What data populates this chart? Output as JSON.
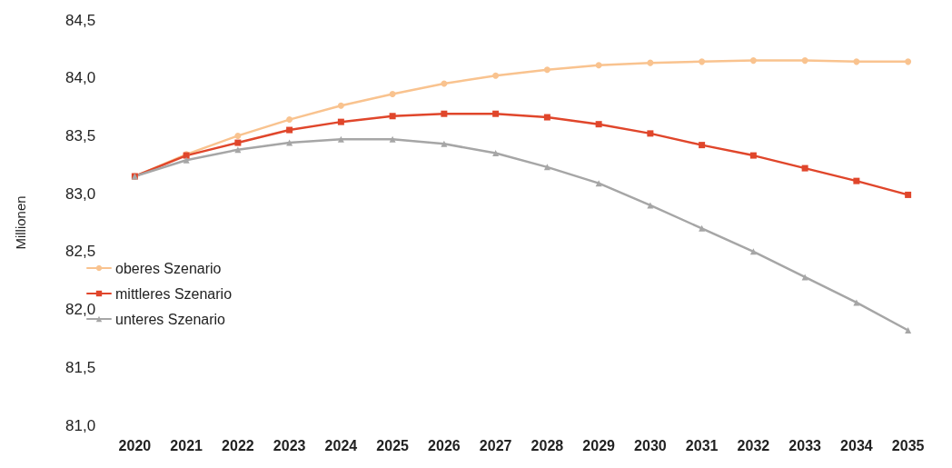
{
  "chart_data": {
    "type": "line",
    "ylabel": "Millionen",
    "categories": [
      "2020",
      "2021",
      "2022",
      "2023",
      "2024",
      "2025",
      "2026",
      "2027",
      "2028",
      "2029",
      "2030",
      "2031",
      "2032",
      "2033",
      "2034",
      "2035"
    ],
    "series": [
      {
        "name": "oberes Szenario",
        "color": "#f9c38f",
        "marker": "circle",
        "values": [
          83.15,
          83.34,
          83.5,
          83.64,
          83.76,
          83.86,
          83.95,
          84.02,
          84.07,
          84.11,
          84.13,
          84.14,
          84.15,
          84.15,
          84.14,
          84.14
        ]
      },
      {
        "name": "mittleres Szenario",
        "color": "#e0462b",
        "marker": "square",
        "values": [
          83.15,
          83.33,
          83.44,
          83.55,
          83.62,
          83.67,
          83.69,
          83.69,
          83.66,
          83.6,
          83.52,
          83.42,
          83.33,
          83.22,
          83.11,
          82.99
        ]
      },
      {
        "name": "unteres Szenario",
        "color": "#a6a6a6",
        "marker": "triangle",
        "values": [
          83.15,
          83.29,
          83.38,
          83.44,
          83.47,
          83.47,
          83.43,
          83.35,
          83.23,
          83.09,
          82.9,
          82.7,
          82.5,
          82.28,
          82.06,
          81.82
        ]
      }
    ],
    "ylim": [
      81.0,
      84.5
    ],
    "yticks": [
      {
        "value": 81.0,
        "label": "81,0"
      },
      {
        "value": 81.5,
        "label": "81,5"
      },
      {
        "value": 82.0,
        "label": "82,0"
      },
      {
        "value": 82.5,
        "label": "82,5"
      },
      {
        "value": 83.0,
        "label": "83,0"
      },
      {
        "value": 83.5,
        "label": "83,5"
      },
      {
        "value": 84.0,
        "label": "84,0"
      },
      {
        "value": 84.5,
        "label": "84,5"
      }
    ],
    "grid": false,
    "legend": "left",
    "line_style": "solid"
  }
}
